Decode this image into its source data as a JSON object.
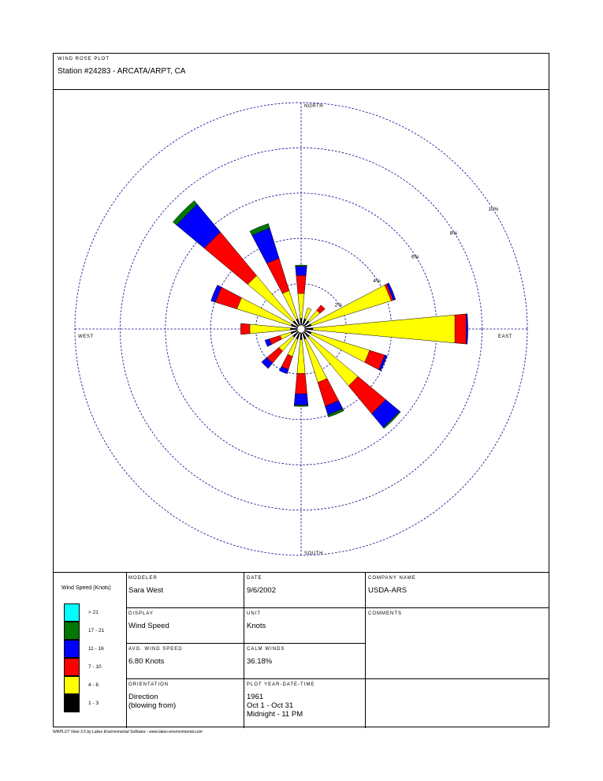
{
  "header": {
    "caption": "WIND ROSE PLOT",
    "station": "Station #24283 - ARCATA/ARPT, CA"
  },
  "chart_data": {
    "type": "wind_rose",
    "directions": [
      "N",
      "NNE",
      "NE",
      "ENE",
      "E",
      "ESE",
      "SE",
      "SSE",
      "S",
      "SSW",
      "SW",
      "WSW",
      "W",
      "WNW",
      "NW",
      "NNW"
    ],
    "direction_degrees": [
      0,
      22.5,
      45,
      67.5,
      90,
      112.5,
      135,
      157.5,
      180,
      202.5,
      225,
      247.5,
      270,
      292.5,
      315,
      337.5
    ],
    "speed_bins": [
      "1 - 3",
      "4 - 6",
      "7 - 10",
      "11 - 16",
      "17 - 21",
      "> 21"
    ],
    "series": [
      {
        "name": "1 - 3",
        "values": [
          0.3,
          0.3,
          0.3,
          0.3,
          0.35,
          0.3,
          0.3,
          0.3,
          0.3,
          0.3,
          0.3,
          0.3,
          0.3,
          0.3,
          0.3,
          0.3
        ],
        "color": "#000000"
      },
      {
        "name": "4 - 6",
        "values": [
          1.1,
          0.5,
          0.6,
          3.7,
          6.3,
          2.7,
          2.8,
          2.0,
          1.5,
          0.8,
          0.8,
          0.5,
          1.8,
          2.5,
          2.6,
          1.3
        ],
        "color": "#ffff00"
      },
      {
        "name": "7 - 10",
        "values": [
          0.8,
          0.0,
          0.3,
          0.1,
          0.5,
          0.7,
          1.6,
          1.1,
          0.9,
          0.6,
          0.7,
          0.5,
          0.4,
          1.0,
          2.5,
          1.5
        ],
        "color": "#ff0000"
      },
      {
        "name": "11 - 16",
        "values": [
          0.4,
          0.0,
          0.0,
          0.1,
          0.05,
          0.1,
          0.8,
          0.4,
          0.5,
          0.2,
          0.3,
          0.2,
          0.0,
          0.2,
          1.6,
          1.4
        ],
        "color": "#0000ff"
      },
      {
        "name": "17 - 21",
        "values": [
          0.05,
          0.0,
          0.0,
          0.0,
          0.0,
          0.0,
          0.05,
          0.1,
          0.05,
          0.0,
          0.0,
          0.0,
          0.0,
          0.0,
          0.2,
          0.2
        ],
        "color": "#007700"
      },
      {
        "name": "> 21",
        "values": [
          0,
          0,
          0,
          0,
          0,
          0,
          0,
          0,
          0,
          0,
          0,
          0,
          0,
          0,
          0,
          0
        ],
        "color": "#00ffff"
      }
    ],
    "rings_percent": [
      2,
      4,
      6,
      8,
      10
    ],
    "ring_labels": [
      "2%",
      "4%",
      "6%",
      "8%",
      "10%"
    ],
    "axis_labels": {
      "north": "NORTH",
      "south": "SOUTH",
      "east": "EAST",
      "west": "WEST"
    }
  },
  "legend": {
    "title": "Wind Speed (Knots)",
    "items": [
      {
        "label": "> 21",
        "color": "#00ffff"
      },
      {
        "label": "17 - 21",
        "color": "#007700"
      },
      {
        "label": "11 - 16",
        "color": "#0000ff"
      },
      {
        "label": "7 - 10",
        "color": "#ff0000"
      },
      {
        "label": "4 - 6",
        "color": "#ffff00"
      },
      {
        "label": "1 - 3",
        "color": "#000000"
      }
    ]
  },
  "info": {
    "modeler_caption": "MODELER",
    "modeler": "Sara West",
    "date_caption": "DATE",
    "date": "9/6/2002",
    "company_caption": "COMPANY NAME",
    "company": "USDA-ARS",
    "display_caption": "DISPLAY",
    "display": "Wind Speed",
    "unit_caption": "UNIT",
    "unit": "Knots",
    "comments_caption": "COMMENTS",
    "avg_caption": "AVG. WIND SPEED",
    "avg": "6.80 Knots",
    "calm_caption": "CALM WINDS",
    "calm": "36.18%",
    "orientation_caption": "ORIENTATION",
    "orientation_1": "Direction",
    "orientation_2": "(blowing from)",
    "plot_caption": "PLOT YEAR-DATE-TIME",
    "plot_year": "1961",
    "plot_dates": "Oct 1 - Oct 31",
    "plot_time": "Midnight - 11 PM"
  },
  "credit": "WRPLOT View 3.5 by Lakes Environmental Software - www.lakes-environmental.com"
}
